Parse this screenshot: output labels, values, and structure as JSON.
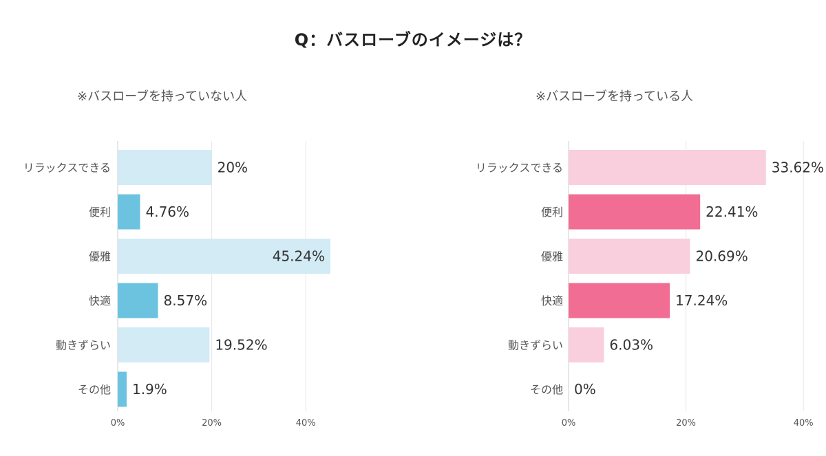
{
  "title": "Q：バスローブのイメージは？",
  "chart_data": [
    {
      "type": "bar",
      "orientation": "horizontal",
      "title": "※バスローブを持っていない人",
      "categories": [
        "リラックスできる",
        "便利",
        "優雅",
        "快適",
        "動きずらい",
        "その他"
      ],
      "values": [
        20,
        4.76,
        45.24,
        8.57,
        19.52,
        1.9
      ],
      "value_labels": [
        "20%",
        "4.76%",
        "45.24%",
        "8.57%",
        "19.52%",
        "1.9%"
      ],
      "xlim": [
        0,
        40
      ],
      "xticks": [
        "0%",
        "20%",
        "40%"
      ],
      "grid": true,
      "colors": [
        "#d2ebf5",
        "#6cc3e0",
        "#d2ebf5",
        "#6cc3e0",
        "#d2ebf5",
        "#6cc3e0"
      ]
    },
    {
      "type": "bar",
      "orientation": "horizontal",
      "title": "※バスローブを持っている人",
      "categories": [
        "リラックスできる",
        "便利",
        "優雅",
        "快適",
        "動きずらい",
        "その他"
      ],
      "values": [
        33.62,
        22.41,
        20.69,
        17.24,
        6.03,
        0
      ],
      "value_labels": [
        "33.62%",
        "22.41%",
        "20.69%",
        "17.24%",
        "6.03%",
        "0%"
      ],
      "xlim": [
        0,
        40
      ],
      "xticks": [
        "0%",
        "20%",
        "40%"
      ],
      "grid": true,
      "colors": [
        "#f9cfdd",
        "#f26d93",
        "#f9cfdd",
        "#f26d93",
        "#f9cfdd",
        "#f26d93"
      ]
    }
  ]
}
